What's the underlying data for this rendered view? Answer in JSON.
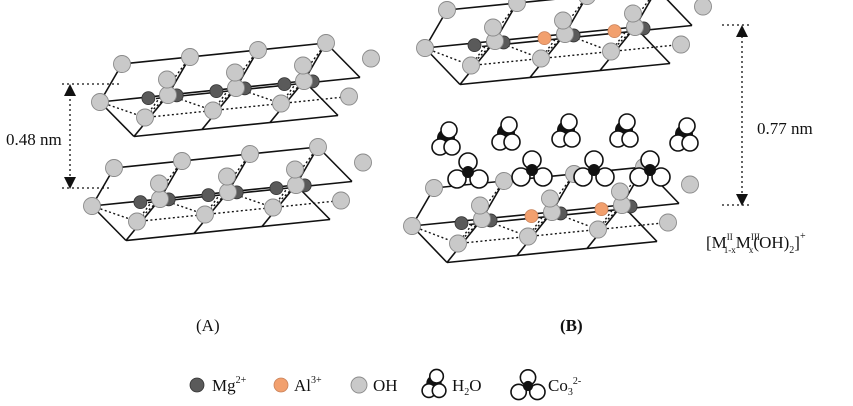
{
  "colors": {
    "oh": "#c9c9c9",
    "oh_stroke": "#8a8a8a",
    "mg": "#5a5a5a",
    "al": "#f2a06e",
    "line": "#111111"
  },
  "labels": {
    "panel_a": "(A)",
    "panel_b": "(B)",
    "spacing_a": "0.48 nm",
    "spacing_b": "0.77 nm",
    "formula": {
      "open": "[M",
      "sup_ii": "II",
      "sub_1x": "1-x",
      "m": "M",
      "sup_iii": "III",
      "sub_x": "x",
      "oh": "(OH)",
      "sub_2": "2",
      "close": "]",
      "charge": "+"
    }
  },
  "legend": {
    "mg": {
      "label": "Mg",
      "sup": "2+"
    },
    "al": {
      "label": "Al",
      "sup": "3+"
    },
    "oh": {
      "label": "OH"
    },
    "water": {
      "label": "H",
      "sub": "2",
      "suffix": "O"
    },
    "carbonate": {
      "label": "Co",
      "sub": "3",
      "sup": "2-"
    }
  }
}
